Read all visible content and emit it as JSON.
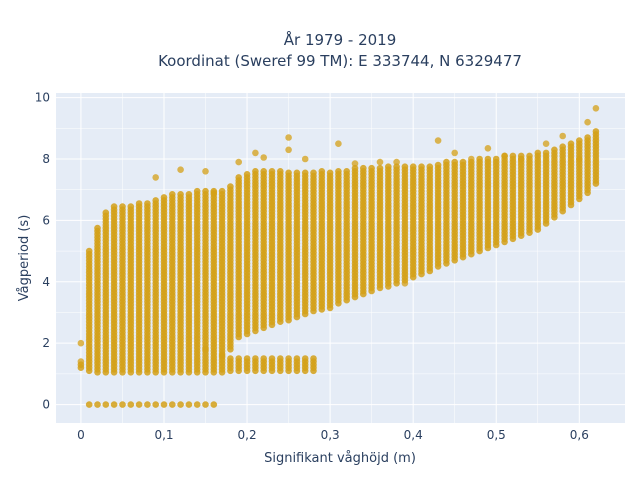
{
  "chart_data": {
    "type": "scatter",
    "title": "År 1979 - 2019",
    "subtitle": "Koordinat (Sweref 99 TM): E 333744, N 6329477",
    "xlabel": "Signifikant våghöjd (m)",
    "ylabel": "Vågperiod (s)",
    "xlim": [
      -0.03,
      0.655
    ],
    "ylim": [
      -0.6,
      10.15
    ],
    "xticks": [
      0,
      0.1,
      0.2,
      0.3,
      0.4,
      0.5,
      0.6
    ],
    "xtick_labels": [
      "0",
      "0,1",
      "0,2",
      "0,3",
      "0,4",
      "0,5",
      "0,6"
    ],
    "yticks": [
      0,
      2,
      4,
      6,
      8,
      10
    ],
    "ytick_labels": [
      "0",
      "2",
      "4",
      "6",
      "8",
      "10"
    ],
    "grid": true,
    "colors": {
      "marker": "#d4a017",
      "plot_bg": "#e5ecf6",
      "grid": "#ffffff"
    },
    "columns": [
      {
        "x": 0.0,
        "ymin": 1.2,
        "ymax": 1.3
      },
      {
        "x": 0.01,
        "ymin": 1.1,
        "ymax": 5.0
      },
      {
        "x": 0.02,
        "ymin": 1.05,
        "ymax": 5.8
      },
      {
        "x": 0.03,
        "ymin": 1.05,
        "ymax": 6.3
      },
      {
        "x": 0.04,
        "ymin": 1.05,
        "ymax": 6.45
      },
      {
        "x": 0.05,
        "ymin": 1.05,
        "ymax": 6.5
      },
      {
        "x": 0.06,
        "ymin": 1.05,
        "ymax": 6.5
      },
      {
        "x": 0.07,
        "ymin": 1.05,
        "ymax": 6.55
      },
      {
        "x": 0.08,
        "ymin": 1.05,
        "ymax": 6.6
      },
      {
        "x": 0.09,
        "ymin": 1.05,
        "ymax": 6.7
      },
      {
        "x": 0.1,
        "ymin": 1.05,
        "ymax": 6.8
      },
      {
        "x": 0.11,
        "ymin": 1.05,
        "ymax": 6.9
      },
      {
        "x": 0.12,
        "ymin": 1.05,
        "ymax": 6.85
      },
      {
        "x": 0.13,
        "ymin": 1.05,
        "ymax": 6.9
      },
      {
        "x": 0.14,
        "ymin": 1.05,
        "ymax": 6.95
      },
      {
        "x": 0.15,
        "ymin": 1.05,
        "ymax": 6.95
      },
      {
        "x": 0.16,
        "ymin": 1.05,
        "ymax": 7.0
      },
      {
        "x": 0.17,
        "ymin": 1.05,
        "ymax": 7.0
      },
      {
        "x": 0.18,
        "ymin": 1.8,
        "ymax": 7.1
      },
      {
        "x": 0.19,
        "ymin": 2.2,
        "ymax": 7.4
      },
      {
        "x": 0.2,
        "ymin": 2.3,
        "ymax": 7.5
      },
      {
        "x": 0.21,
        "ymin": 2.4,
        "ymax": 7.6
      },
      {
        "x": 0.22,
        "ymin": 2.5,
        "ymax": 7.6
      },
      {
        "x": 0.23,
        "ymin": 2.6,
        "ymax": 7.6
      },
      {
        "x": 0.24,
        "ymin": 2.7,
        "ymax": 7.6
      },
      {
        "x": 0.25,
        "ymin": 2.75,
        "ymax": 7.6
      },
      {
        "x": 0.26,
        "ymin": 2.85,
        "ymax": 7.6
      },
      {
        "x": 0.27,
        "ymin": 2.95,
        "ymax": 7.6
      },
      {
        "x": 0.28,
        "ymin": 3.05,
        "ymax": 7.6
      },
      {
        "x": 0.29,
        "ymin": 3.1,
        "ymax": 7.6
      },
      {
        "x": 0.3,
        "ymin": 3.15,
        "ymax": 7.6
      },
      {
        "x": 0.31,
        "ymin": 3.3,
        "ymax": 7.6
      },
      {
        "x": 0.32,
        "ymin": 3.4,
        "ymax": 7.65
      },
      {
        "x": 0.33,
        "ymin": 3.5,
        "ymax": 7.7
      },
      {
        "x": 0.34,
        "ymin": 3.6,
        "ymax": 7.7
      },
      {
        "x": 0.35,
        "ymin": 3.7,
        "ymax": 7.7
      },
      {
        "x": 0.36,
        "ymin": 3.8,
        "ymax": 7.7
      },
      {
        "x": 0.37,
        "ymin": 3.85,
        "ymax": 7.75
      },
      {
        "x": 0.38,
        "ymin": 3.95,
        "ymax": 7.75
      },
      {
        "x": 0.39,
        "ymin": 4.05,
        "ymax": 7.75
      },
      {
        "x": 0.4,
        "ymin": 4.15,
        "ymax": 7.8
      },
      {
        "x": 0.41,
        "ymin": 4.25,
        "ymax": 7.8
      },
      {
        "x": 0.42,
        "ymin": 4.35,
        "ymax": 7.8
      },
      {
        "x": 0.43,
        "ymin": 4.5,
        "ymax": 7.85
      },
      {
        "x": 0.44,
        "ymin": 4.6,
        "ymax": 7.9
      },
      {
        "x": 0.45,
        "ymin": 4.7,
        "ymax": 7.9
      },
      {
        "x": 0.46,
        "ymin": 4.8,
        "ymax": 7.95
      },
      {
        "x": 0.47,
        "ymin": 4.9,
        "ymax": 7.95
      },
      {
        "x": 0.48,
        "ymin": 5.0,
        "ymax": 8.0
      },
      {
        "x": 0.49,
        "ymin": 5.1,
        "ymax": 8.05
      },
      {
        "x": 0.5,
        "ymin": 5.2,
        "ymax": 8.05
      },
      {
        "x": 0.51,
        "ymin": 5.3,
        "ymax": 8.1
      },
      {
        "x": 0.52,
        "ymin": 5.4,
        "ymax": 8.1
      },
      {
        "x": 0.53,
        "ymin": 5.5,
        "ymax": 8.1
      },
      {
        "x": 0.54,
        "ymin": 5.6,
        "ymax": 8.15
      },
      {
        "x": 0.55,
        "ymin": 5.7,
        "ymax": 8.2
      },
      {
        "x": 0.56,
        "ymin": 5.9,
        "ymax": 8.2
      },
      {
        "x": 0.57,
        "ymin": 6.1,
        "ymax": 8.3
      },
      {
        "x": 0.58,
        "ymin": 6.3,
        "ymax": 8.4
      },
      {
        "x": 0.59,
        "ymin": 6.5,
        "ymax": 8.5
      },
      {
        "x": 0.6,
        "ymin": 6.7,
        "ymax": 8.6
      },
      {
        "x": 0.61,
        "ymin": 6.9,
        "ymax": 8.7
      },
      {
        "x": 0.62,
        "ymin": 7.2,
        "ymax": 8.9
      }
    ],
    "low_band": {
      "y_range": [
        1.1,
        1.5
      ],
      "x": [
        0.18,
        0.19,
        0.2,
        0.21,
        0.22,
        0.23,
        0.24,
        0.25,
        0.26,
        0.27,
        0.28
      ]
    },
    "zero_row": {
      "y": 0,
      "x": [
        0.01,
        0.02,
        0.03,
        0.04,
        0.05,
        0.06,
        0.07,
        0.08,
        0.09,
        0.1,
        0.11,
        0.12,
        0.13,
        0.14,
        0.15,
        0.16
      ]
    },
    "outliers": [
      {
        "x": 0.0,
        "y": 2.0
      },
      {
        "x": 0.0,
        "y": 1.4
      },
      {
        "x": 0.09,
        "y": 7.4
      },
      {
        "x": 0.12,
        "y": 7.65
      },
      {
        "x": 0.15,
        "y": 7.6
      },
      {
        "x": 0.19,
        "y": 7.9
      },
      {
        "x": 0.21,
        "y": 8.2
      },
      {
        "x": 0.22,
        "y": 8.05
      },
      {
        "x": 0.25,
        "y": 8.7
      },
      {
        "x": 0.25,
        "y": 8.3
      },
      {
        "x": 0.27,
        "y": 8.0
      },
      {
        "x": 0.31,
        "y": 8.5
      },
      {
        "x": 0.33,
        "y": 7.85
      },
      {
        "x": 0.36,
        "y": 7.9
      },
      {
        "x": 0.38,
        "y": 7.9
      },
      {
        "x": 0.43,
        "y": 8.6
      },
      {
        "x": 0.45,
        "y": 8.2
      },
      {
        "x": 0.47,
        "y": 8.0
      },
      {
        "x": 0.49,
        "y": 8.35
      },
      {
        "x": 0.51,
        "y": 8.1
      },
      {
        "x": 0.53,
        "y": 8.0
      },
      {
        "x": 0.56,
        "y": 8.5
      },
      {
        "x": 0.58,
        "y": 8.75
      },
      {
        "x": 0.61,
        "y": 9.2
      },
      {
        "x": 0.62,
        "y": 9.65
      },
      {
        "x": 0.6,
        "y": 8.0
      },
      {
        "x": 0.17,
        "y": 1.6
      },
      {
        "x": 0.15,
        "y": 1.8
      },
      {
        "x": 0.39,
        "y": 3.95
      },
      {
        "x": 0.16,
        "y": 6.9
      }
    ]
  }
}
